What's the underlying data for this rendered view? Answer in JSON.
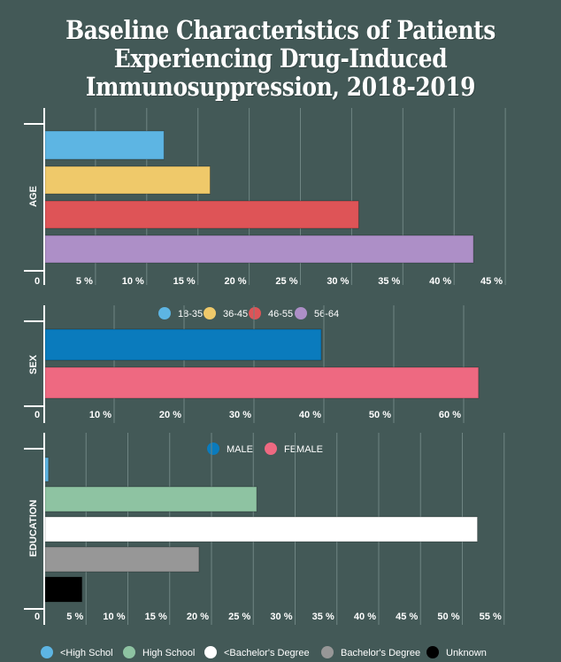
{
  "title_lines": [
    "Baseline Characteristics of Patients",
    "Experiencing Drug-Induced",
    "Immunosuppression, 2018-2019"
  ],
  "chart_data": [
    {
      "type": "bar",
      "orientation": "horizontal",
      "ylabel": "AGE",
      "xlim": [
        0,
        50
      ],
      "x_ticks": [
        0,
        5,
        10,
        15,
        20,
        25,
        30,
        35,
        40,
        45
      ],
      "x_tick_labels": [
        "0",
        "5 %",
        "10 %",
        "15 %",
        "20 %",
        "25 %",
        "30 %",
        "35 %",
        "40 %",
        "45 %"
      ],
      "grid": true,
      "categories": [
        "18-35",
        "36-45",
        "46-55",
        "56-64"
      ],
      "values": [
        11.6,
        16.1,
        30.6,
        41.8
      ],
      "colors": [
        "#5db5e3",
        "#efc96a",
        "#de5457",
        "#ad8fc7"
      ],
      "legend": {
        "placement": "bottom-center",
        "entries": [
          "18-35",
          "36-45",
          "46-55",
          "56-64"
        ]
      }
    },
    {
      "type": "bar",
      "orientation": "horizontal",
      "ylabel": "SEX",
      "xlim": [
        0,
        70
      ],
      "x_ticks": [
        0,
        10,
        20,
        30,
        40,
        50,
        60
      ],
      "x_tick_labels": [
        "0",
        "10 %",
        "20 %",
        "30 %",
        "40 %",
        "50 %",
        "60 %"
      ],
      "grid": true,
      "categories": [
        "MALE",
        "FEMALE"
      ],
      "values": [
        39.5,
        62.0
      ],
      "colors": [
        "#0a7bbd",
        "#ee6981"
      ],
      "legend": {
        "placement": "bottom-center",
        "entries": [
          "MALE",
          "FEMALE"
        ]
      }
    },
    {
      "type": "bar",
      "orientation": "horizontal",
      "ylabel": "EDUCATION",
      "xlim": [
        0,
        60
      ],
      "x_ticks": [
        0,
        5,
        10,
        15,
        20,
        25,
        30,
        35,
        40,
        45,
        50,
        55
      ],
      "x_tick_labels": [
        "0",
        "5 %",
        "10 %",
        "15 %",
        "20 %",
        "25 %",
        "30 %",
        "35 %",
        "40 %",
        "45 %",
        "50 %",
        "55 %"
      ],
      "grid": true,
      "categories": [
        "<High Schol",
        "High School",
        "<Bachelor's Degree",
        "Bachelor's Degree",
        "Unknown"
      ],
      "values": [
        0.4,
        25.3,
        51.7,
        18.4,
        4.4
      ],
      "colors": [
        "#5db5e3",
        "#8ec3a2",
        "#ffffff",
        "#979797",
        "#000000"
      ],
      "legend": {
        "placement": "bottom-center",
        "entries": [
          "<High Schol",
          "High School",
          "<Bachelor's Degree",
          "Bachelor's Degree",
          "Unknown"
        ]
      }
    }
  ],
  "colors": {
    "background": "#435957",
    "gridline": "#6f8583",
    "axis": "#ffffff"
  }
}
